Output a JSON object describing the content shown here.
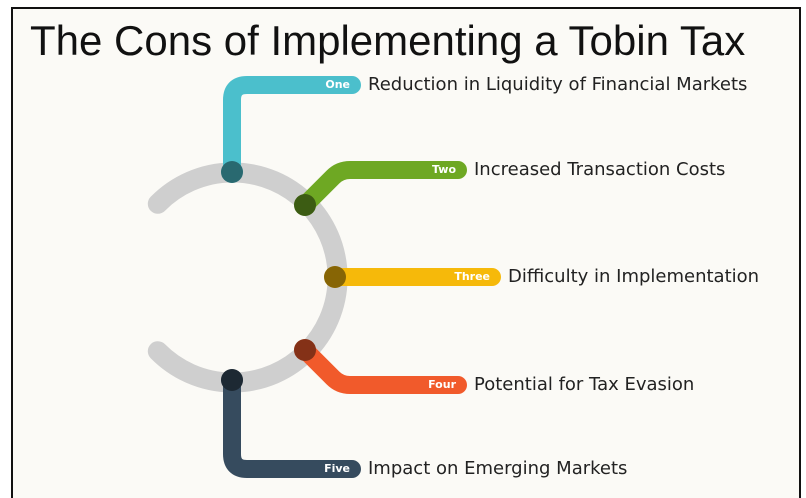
{
  "title": "The Cons of Implementing a Tobin Tax",
  "items": [
    {
      "label": "One",
      "text": "Reduction in Liquidity of Financial Markets",
      "color": "#4bbfcc"
    },
    {
      "label": "Two",
      "text": "Increased Transaction Costs",
      "color": "#6ea823"
    },
    {
      "label": "Three",
      "text": "Difficulty in Implementation",
      "color": "#f6b90a"
    },
    {
      "label": "Four",
      "text": "Potential for Tax Evasion",
      "color": "#f15a2b"
    },
    {
      "label": "Five",
      "text": "Impact on Emerging Markets",
      "color": "#364b5e"
    }
  ]
}
